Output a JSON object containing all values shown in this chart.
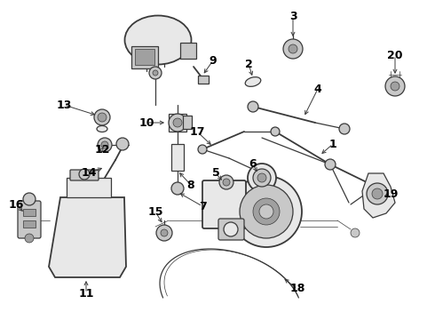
{
  "bg_color": "#ffffff",
  "line_color": "#3a3a3a",
  "text_color": "#000000",
  "fig_width": 4.9,
  "fig_height": 3.6,
  "dpi": 100,
  "lw_main": 0.9,
  "lw_thin": 0.5,
  "lw_thick": 1.3,
  "part_gray_light": "#e8e8e8",
  "part_gray_mid": "#c8c8c8",
  "part_gray_dark": "#a0a0a0"
}
